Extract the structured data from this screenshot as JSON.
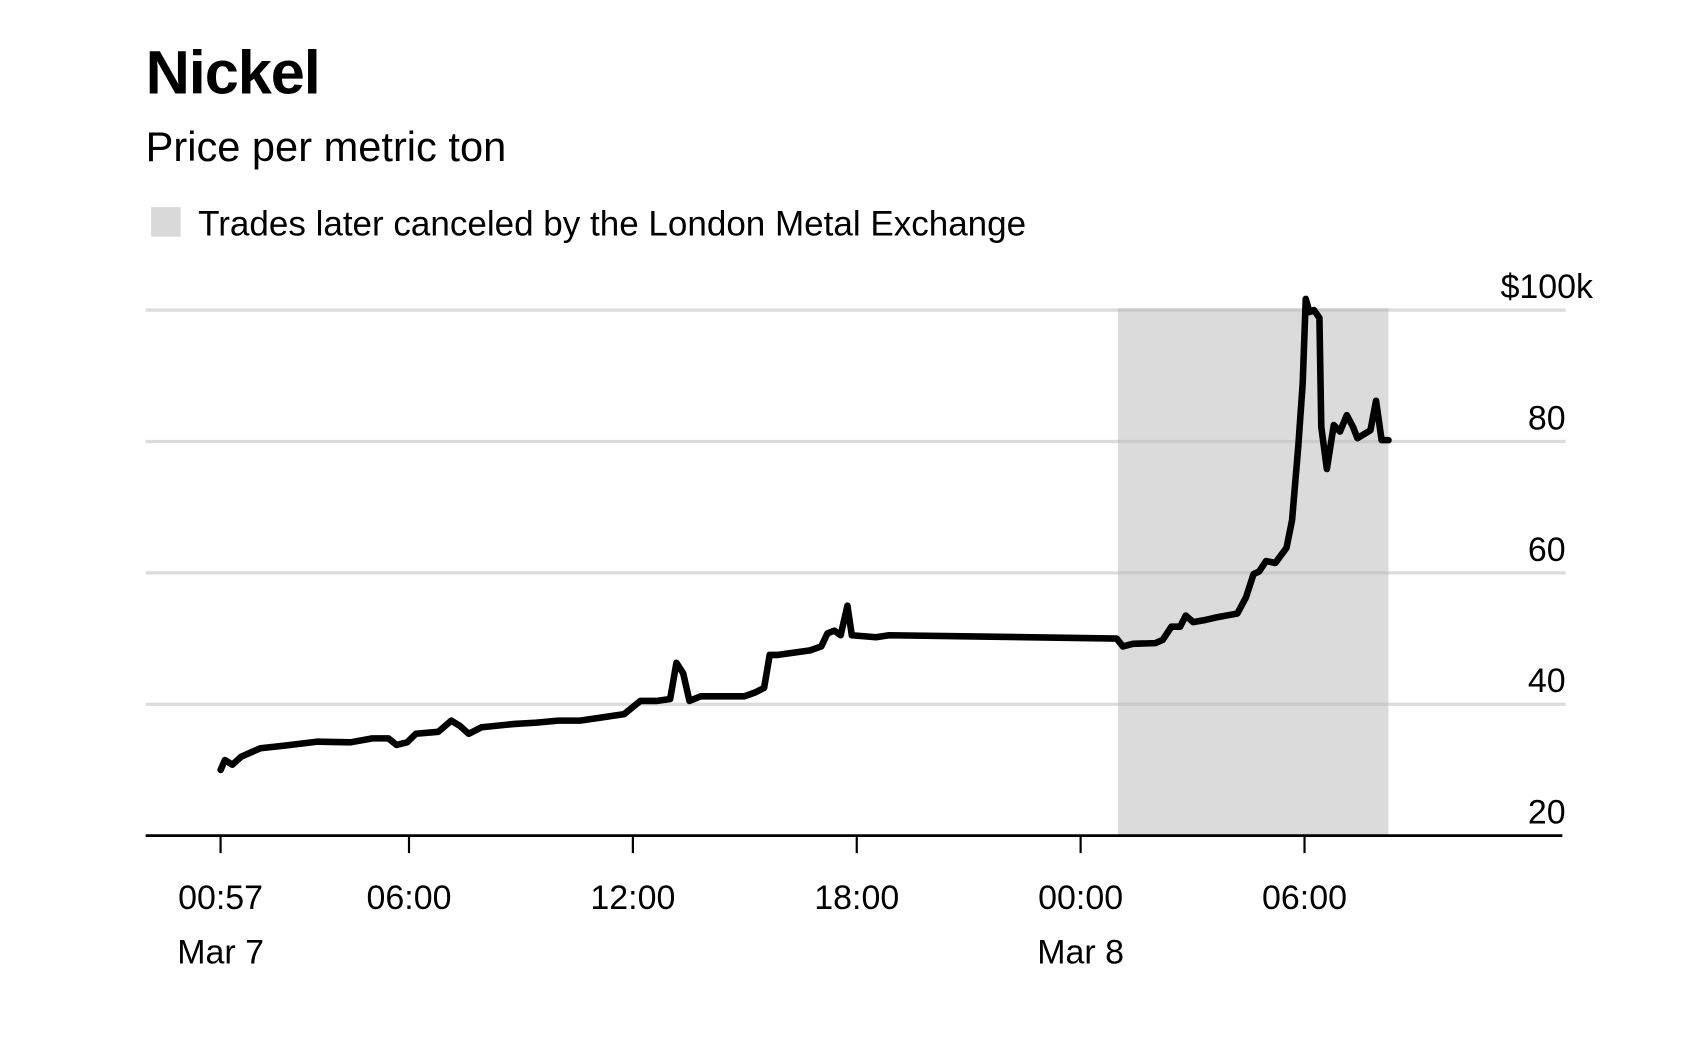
{
  "chart_data": {
    "type": "line",
    "title": "Nickel",
    "subtitle": "Price per metric ton",
    "legend": {
      "label": "Trades later canceled by the London Metal Exchange",
      "color": "#d9d9d9",
      "placement": "top-left"
    },
    "shaded_region": {
      "start": "Mar 8 01:00",
      "end": "Mar 8 08:15",
      "color": "#d9d9d9"
    },
    "y_axis": {
      "range": [
        20,
        100
      ],
      "ticks": [
        20,
        40,
        60,
        80,
        100
      ],
      "tick_labels": [
        "20",
        "40",
        "60",
        "80",
        "$100k"
      ],
      "position": "right",
      "grid": true
    },
    "x_axis": {
      "ticks": [
        "Mar 7 00:57",
        "Mar 7 06:00",
        "Mar 7 12:00",
        "Mar 7 18:00",
        "Mar 8 00:00",
        "Mar 8 06:00"
      ],
      "tick_labels": [
        "00:57",
        "06:00",
        "12:00",
        "18:00",
        "00:00",
        "06:00"
      ],
      "date_labels": [
        "Mar 7",
        "",
        "",
        "",
        "Mar 8",
        ""
      ]
    },
    "line_color": "#000000",
    "x": [
      "Mar 7 00:57",
      "Mar 7 01:04",
      "Mar 7 01:16",
      "Mar 7 01:30",
      "Mar 7 02:01",
      "Mar 7 02:40",
      "Mar 7 03:33",
      "Mar 7 04:26",
      "Mar 7 05:01",
      "Mar 7 05:27",
      "Mar 7 05:40",
      "Mar 7 05:57",
      "Mar 7 06:11",
      "Mar 7 06:47",
      "Mar 7 07:08",
      "Mar 7 07:22",
      "Mar 7 07:36",
      "Mar 7 07:57",
      "Mar 7 08:50",
      "Mar 7 09:25",
      "Mar 7 10:00",
      "Mar 7 10:35",
      "Mar 7 11:11",
      "Mar 7 11:46",
      "Mar 7 12:12",
      "Mar 7 12:38",
      "Mar 7 13:00",
      "Mar 7 13:10",
      "Mar 7 13:21",
      "Mar 7 13:31",
      "Mar 7 13:49",
      "Mar 7 14:59",
      "Mar 7 15:17",
      "Mar 7 15:31",
      "Mar 7 15:40",
      "Mar 7 15:52",
      "Mar 7 16:45",
      "Mar 7 17:03",
      "Mar 7 17:13",
      "Mar 7 17:24",
      "Mar 7 17:34",
      "Mar 7 17:45",
      "Mar 7 17:52",
      "Mar 7 18:31",
      "Mar 7 18:52",
      "Mar 8 00:58",
      "Mar 8 01:08",
      "Mar 8 01:24",
      "Mar 8 02:00",
      "Mar 8 02:12",
      "Mar 8 02:26",
      "Mar 8 02:40",
      "Mar 8 02:49",
      "Mar 8 03:01",
      "Mar 8 03:19",
      "Mar 8 03:37",
      "Mar 8 04:12",
      "Mar 8 04:26",
      "Mar 8 04:38",
      "Mar 8 04:47",
      "Mar 8 04:58",
      "Mar 8 05:13",
      "Mar 8 05:31",
      "Mar 8 05:40",
      "Mar 8 05:50",
      "Mar 8 05:57",
      "Mar 8 06:02",
      "Mar 8 06:08",
      "Mar 8 06:15",
      "Mar 8 06:24",
      "Mar 8 06:27",
      "Mar 8 06:36",
      "Mar 8 06:47",
      "Mar 8 06:57",
      "Mar 8 07:08",
      "Mar 8 07:18",
      "Mar 8 07:25",
      "Mar 8 07:46",
      "Mar 8 07:55",
      "Mar 8 08:04",
      "Mar 8 08:15"
    ],
    "y": [
      30,
      31.5,
      30.8,
      32,
      33.3,
      33.7,
      34.3,
      34.2,
      34.8,
      34.8,
      33.8,
      34.2,
      35.5,
      35.8,
      37.5,
      36.7,
      35.5,
      36.5,
      37,
      37.2,
      37.5,
      37.5,
      38,
      38.5,
      40.5,
      40.5,
      40.8,
      46.3,
      44.7,
      40.5,
      41.2,
      41.2,
      41.8,
      42.5,
      47.5,
      47.5,
      48.2,
      48.8,
      50.8,
      51.2,
      50.5,
      55,
      50.5,
      50.2,
      50.5,
      50,
      48.8,
      49.2,
      49.3,
      49.8,
      51.8,
      51.8,
      53.5,
      52.5,
      52.8,
      53.2,
      53.8,
      56.3,
      59.8,
      60.2,
      61.8,
      61.5,
      63.8,
      68,
      79.3,
      88.8,
      101.7,
      99.7,
      100,
      98.8,
      82.2,
      75.8,
      82.5,
      81.5,
      84,
      82.2,
      80.5,
      81.7,
      86.2,
      80.2,
      80.2
    ]
  }
}
